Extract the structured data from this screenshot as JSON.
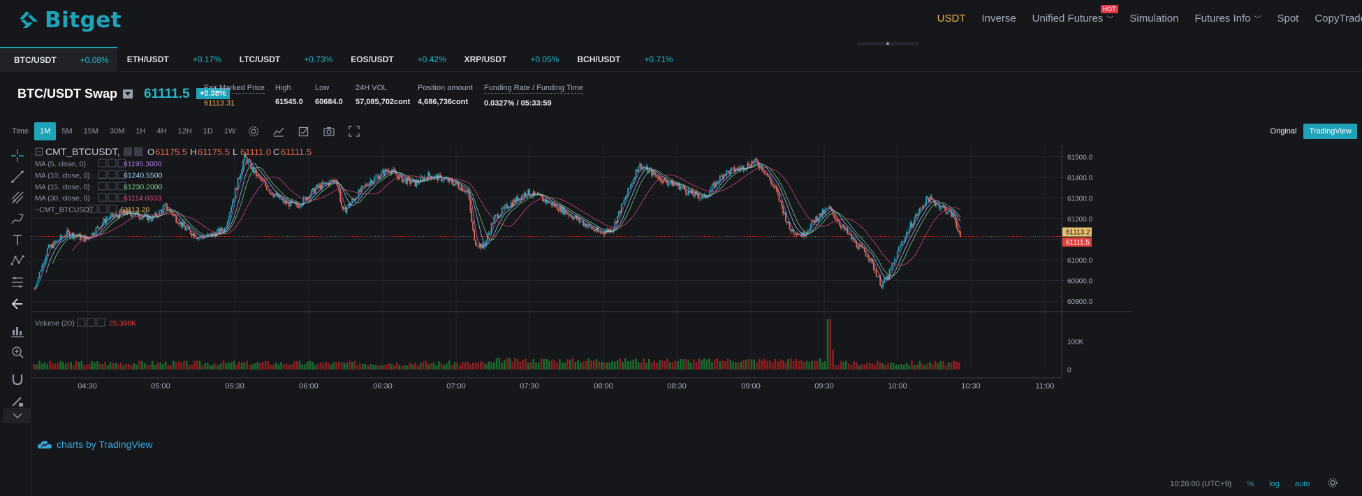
{
  "brand": {
    "name": "Bitget",
    "color": "#1fa3b8"
  },
  "nav": {
    "items": [
      {
        "label": "USDT",
        "active": true,
        "dropdown": false
      },
      {
        "label": "Inverse",
        "active": false,
        "dropdown": false
      },
      {
        "label": "Unified Futures",
        "active": false,
        "dropdown": true,
        "badge": "HOT"
      },
      {
        "label": "Simulation",
        "active": false,
        "dropdown": false
      },
      {
        "label": "Futures Info",
        "active": false,
        "dropdown": true
      },
      {
        "label": "Spot",
        "active": false,
        "dropdown": false
      },
      {
        "label": "CopyTrade",
        "active": false,
        "dropdown": false
      }
    ]
  },
  "symbol_tabs": [
    {
      "symbol": "BTC/USDT",
      "change": "+0.08%",
      "active": true
    },
    {
      "symbol": "ETH/USDT",
      "change": "+0.17%",
      "active": false
    },
    {
      "symbol": "LTC/USDT",
      "change": "+0.73%",
      "active": false
    },
    {
      "symbol": "EOS/USDT",
      "change": "+0.42%",
      "active": false
    },
    {
      "symbol": "XRP/USDT",
      "change": "+0.05%",
      "active": false
    },
    {
      "symbol": "BCH/USDT",
      "change": "+0.71%",
      "active": false
    }
  ],
  "ticker": {
    "pair": "BTC/USDT Swap",
    "last_price": "61111.5",
    "change": "+0.08%",
    "stats": [
      {
        "label": "Fair Marked Price",
        "value": "61113.31",
        "dashed": true,
        "gold": true
      },
      {
        "label": "High",
        "value": "61545.0",
        "dashed": false,
        "gold": false
      },
      {
        "label": "Low",
        "value": "60684.0",
        "dashed": false,
        "gold": false
      },
      {
        "label": "24H VOL",
        "value": "57,085,702cont",
        "dashed": false,
        "gold": false
      },
      {
        "label": "Position amount",
        "value": "4,686,736cont",
        "dashed": false,
        "gold": false
      },
      {
        "label": "Funding Rate / Funding Time",
        "value": "0.0327% / 05:33:59",
        "dashed": true,
        "gold": false
      }
    ]
  },
  "timeframes": {
    "label": "Time",
    "items": [
      "1M",
      "5M",
      "15M",
      "30M",
      "1H",
      "4H",
      "12H",
      "1D",
      "1W"
    ],
    "active": "1M"
  },
  "toolbar_icons": [
    "settings-icon",
    "indicators-icon",
    "template-icon",
    "camera-icon",
    "fullscreen-icon"
  ],
  "view_switch": {
    "original": "Original",
    "tradingview": "TradingView"
  },
  "left_tools": [
    "crosshair-icon",
    "trend-line-icon",
    "pitchfork-icon",
    "brush-icon",
    "text-icon",
    "pattern-icon",
    "fib-icon",
    "back-arrow-icon",
    "measure-icon",
    "zoom-icon",
    "magnet-icon",
    "pencil-lock-icon"
  ],
  "chart_data": {
    "type": "candlestick",
    "symbol_label": "CMT_BTCUSDT, 1",
    "ohlc_label": {
      "o": "61175.5",
      "h": "61175.5",
      "l": "61111.0",
      "c": "61111.5"
    },
    "indicators": [
      {
        "name": "MA (5, close, 0)",
        "value": "61195.3000",
        "color": "#b07ee0"
      },
      {
        "name": "MA (10, close, 0)",
        "value": "61240.5500",
        "color": "#9fd0f0"
      },
      {
        "name": "MA (15, close, 0)",
        "value": "61230.2000",
        "color": "#7ed08a"
      },
      {
        "name": "MA (30, close, 0)",
        "value": "61114.0333",
        "color": "#d4457e"
      },
      {
        "name": "~CMT_BTCUSDT",
        "value": "61113.20",
        "color": "#e8c060"
      }
    ],
    "price_axis": [
      61500,
      61400,
      61300,
      61200,
      61100,
      61000,
      60900,
      60800
    ],
    "price_axis_labels": [
      "61500.0",
      "61400.0",
      "61300.0",
      "61200.0",
      "61100.0",
      "61000.0",
      "60900.0",
      "60800.0"
    ],
    "ylim": [
      60770,
      61555
    ],
    "time_axis": [
      "04:30",
      "05:00",
      "05:30",
      "06:00",
      "06:30",
      "07:00",
      "07:30",
      "08:00",
      "08:30",
      "09:00",
      "09:30",
      "10:00",
      "10:30",
      "11:00"
    ],
    "price_path": [
      [
        0,
        60860
      ],
      [
        10,
        61050
      ],
      [
        25,
        61130
      ],
      [
        40,
        61100
      ],
      [
        55,
        61200
      ],
      [
        70,
        61230
      ],
      [
        90,
        61200
      ],
      [
        100,
        61260
      ],
      [
        115,
        61150
      ],
      [
        125,
        61110
      ],
      [
        135,
        61120
      ],
      [
        145,
        61150
      ],
      [
        155,
        61380
      ],
      [
        160,
        61500
      ],
      [
        168,
        61420
      ],
      [
        180,
        61330
      ],
      [
        190,
        61280
      ],
      [
        200,
        61260
      ],
      [
        215,
        61350
      ],
      [
        230,
        61390
      ],
      [
        235,
        61230
      ],
      [
        245,
        61310
      ],
      [
        255,
        61380
      ],
      [
        270,
        61440
      ],
      [
        280,
        61390
      ],
      [
        290,
        61370
      ],
      [
        300,
        61410
      ],
      [
        310,
        61395
      ],
      [
        320,
        61370
      ],
      [
        330,
        61330
      ],
      [
        335,
        61090
      ],
      [
        342,
        61060
      ],
      [
        350,
        61200
      ],
      [
        360,
        61260
      ],
      [
        375,
        61330
      ],
      [
        385,
        61300
      ],
      [
        400,
        61250
      ],
      [
        415,
        61190
      ],
      [
        430,
        61130
      ],
      [
        440,
        61150
      ],
      [
        450,
        61300
      ],
      [
        460,
        61460
      ],
      [
        468,
        61430
      ],
      [
        480,
        61380
      ],
      [
        490,
        61360
      ],
      [
        500,
        61320
      ],
      [
        510,
        61300
      ],
      [
        525,
        61420
      ],
      [
        540,
        61450
      ],
      [
        548,
        61480
      ],
      [
        555,
        61440
      ],
      [
        565,
        61330
      ],
      [
        575,
        61150
      ],
      [
        585,
        61120
      ],
      [
        595,
        61200
      ],
      [
        605,
        61250
      ],
      [
        615,
        61160
      ],
      [
        625,
        61080
      ],
      [
        635,
        61020
      ],
      [
        645,
        60880
      ],
      [
        650,
        60920
      ],
      [
        660,
        61080
      ],
      [
        670,
        61200
      ],
      [
        680,
        61300
      ],
      [
        690,
        61260
      ],
      [
        700,
        61210
      ],
      [
        705,
        61118
      ]
    ],
    "last_close": 61111.5,
    "fair_price": 61113.2,
    "fair_price_label": "61113.2",
    "last_price_label": "61111.5",
    "volume": {
      "label": "Volume (20)",
      "value": "25.398K",
      "axis": [
        "100K",
        "0"
      ],
      "ymax": 190000
    },
    "colors": {
      "up": "#1fa3b8",
      "down": "#e86a4d",
      "vol_up": "#1d6b2e",
      "vol_down": "#8c1f22"
    }
  },
  "tv_brand": "charts by TradingView",
  "bottom_bar": {
    "time": "10:26:00 (UTC+9)",
    "percent": "%",
    "log": "log",
    "auto": "auto"
  }
}
